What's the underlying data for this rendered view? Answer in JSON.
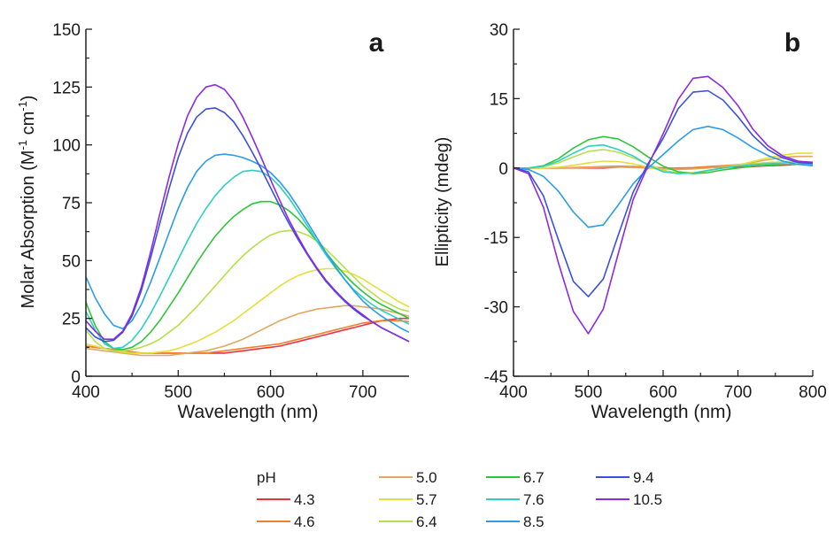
{
  "panels": [
    {
      "panel_label": "a",
      "xlabel": "Wavelength (nm)",
      "ylabel_parts": [
        "Molar Absorption (M",
        "-1",
        " cm",
        "-1",
        ")"
      ],
      "xlim": [
        400,
        750
      ],
      "ylim": [
        0,
        150
      ],
      "xticks": [
        400,
        500,
        600,
        700
      ],
      "yticks": [
        0,
        25,
        50,
        75,
        100,
        125,
        150
      ],
      "xtick_labels": [
        "400",
        "500",
        "600",
        "700"
      ],
      "ytick_labels": [
        "0",
        "25",
        "50",
        "75",
        "100",
        "125",
        "150"
      ]
    },
    {
      "panel_label": "b",
      "xlabel": "Wavelength (nm)",
      "ylabel": "Ellipticity (mdeg)",
      "xlim": [
        400,
        800
      ],
      "ylim": [
        -45,
        30
      ],
      "xticks": [
        400,
        500,
        600,
        700,
        800
      ],
      "yticks": [
        -45,
        -30,
        -15,
        0,
        15,
        30
      ],
      "xtick_labels": [
        "400",
        "500",
        "600",
        "700",
        "800"
      ],
      "ytick_labels": [
        "-45",
        "-30",
        "-15",
        "0",
        "15",
        "30"
      ]
    }
  ],
  "legend": {
    "title": "pH",
    "entries": [
      "4.3",
      "4.6",
      "5.0",
      "5.7",
      "6.4",
      "6.7",
      "7.6",
      "8.5",
      "9.4",
      "10.5"
    ]
  },
  "colors": [
    "#e8343a",
    "#f07f2f",
    "#e0a862",
    "#e6de3c",
    "#b5e04a",
    "#2fc53a",
    "#2ecfc2",
    "#2a9cea",
    "#3a4fe0",
    "#8a2be2"
  ],
  "chart_data": [
    {
      "type": "line",
      "title": "a",
      "xlabel": "Wavelength (nm)",
      "ylabel": "Molar Absorption (M-1 cm-1)",
      "xlim": [
        400,
        750
      ],
      "ylim": [
        0,
        150
      ],
      "x": [
        400,
        410,
        420,
        430,
        440,
        450,
        460,
        470,
        480,
        490,
        500,
        510,
        520,
        530,
        540,
        550,
        560,
        570,
        580,
        590,
        600,
        610,
        620,
        630,
        640,
        650,
        660,
        670,
        680,
        690,
        700,
        710,
        720,
        730,
        740,
        750
      ],
      "series": [
        {
          "name": "4.3",
          "values": [
            13,
            12.5,
            12,
            11.5,
            11,
            10.5,
            10,
            10,
            10,
            10,
            10,
            10,
            10,
            10,
            10,
            10,
            10.5,
            11,
            11.5,
            12,
            12.5,
            13,
            14,
            15,
            16,
            17,
            18,
            19,
            20,
            21,
            22,
            23,
            24,
            24.5,
            25,
            25
          ]
        },
        {
          "name": "4.6",
          "values": [
            13,
            12.5,
            12,
            11.5,
            11,
            10.5,
            10,
            10,
            10,
            10,
            10,
            10,
            10,
            10,
            10.5,
            11,
            11.5,
            12,
            12.5,
            13,
            13.5,
            14,
            15,
            16,
            17,
            18,
            19,
            20,
            21,
            22,
            23,
            23.5,
            24,
            24,
            24,
            23.5
          ]
        },
        {
          "name": "5.0",
          "values": [
            12,
            11.5,
            11,
            10.5,
            10,
            9.5,
            9,
            9,
            9,
            9,
            9.5,
            10,
            10.5,
            11,
            12,
            13,
            14.5,
            16,
            18,
            20,
            22,
            24,
            25.5,
            27,
            28,
            29,
            29.5,
            30,
            30.5,
            30.5,
            30,
            29.5,
            29,
            28,
            27,
            26
          ]
        },
        {
          "name": "5.7",
          "values": [
            14,
            13,
            12,
            11,
            10.5,
            10,
            10,
            10,
            10.5,
            11,
            12,
            13.5,
            15,
            17,
            19,
            21.5,
            24,
            27,
            30,
            33,
            36,
            39,
            41.5,
            43.5,
            45,
            46,
            46.5,
            46.5,
            45.5,
            44,
            42,
            39.5,
            37,
            34.5,
            32,
            30
          ]
        },
        {
          "name": "6.4",
          "values": [
            20,
            15,
            12,
            11,
            11,
            11.5,
            12.5,
            14,
            16,
            19,
            22,
            26,
            30,
            34.5,
            39,
            43.5,
            48,
            52,
            55.5,
            58.5,
            61,
            62.5,
            63,
            62.5,
            61,
            58.5,
            55,
            51,
            47,
            43,
            39,
            36,
            33,
            31,
            29,
            28
          ]
        },
        {
          "name": "6.7",
          "values": [
            32,
            22,
            15,
            12,
            11.5,
            12.5,
            15,
            19,
            24,
            30,
            36,
            42.5,
            49,
            55,
            60.5,
            65,
            69,
            72,
            74.5,
            75.5,
            75.5,
            74,
            71.5,
            68,
            63.5,
            58.5,
            53.5,
            48.5,
            44,
            40,
            36.5,
            33.5,
            31,
            29,
            27,
            25
          ]
        },
        {
          "name": "7.6",
          "values": [
            28,
            20,
            14,
            12,
            12.5,
            15.5,
            20.5,
            27,
            34.5,
            42.5,
            50.5,
            58.5,
            66,
            72.5,
            78,
            82.5,
            86,
            88.5,
            89,
            88.5,
            86,
            82,
            77,
            71,
            65,
            58.5,
            52.5,
            47,
            42,
            37.5,
            34,
            31,
            28.5,
            26.5,
            24.5,
            22.5
          ]
        },
        {
          "name": "8.5",
          "values": [
            43,
            34,
            27,
            22,
            20.5,
            24,
            31,
            40.5,
            51,
            62,
            72.5,
            81.5,
            88.5,
            93,
            95.5,
            96,
            95.5,
            94.5,
            93,
            91,
            88,
            84,
            79,
            73,
            66.5,
            60,
            53.5,
            47.5,
            42,
            37,
            32.5,
            29,
            26,
            23.5,
            21,
            19
          ]
        },
        {
          "name": "9.4",
          "values": [
            21,
            17,
            15,
            15.5,
            19,
            26,
            37,
            51,
            66,
            81,
            94.5,
            105,
            112,
            115.5,
            116,
            114,
            110,
            104,
            97,
            89.5,
            81.5,
            73.5,
            66,
            59,
            52.5,
            46.5,
            41,
            36.5,
            32.5,
            29,
            26,
            23.5,
            21,
            19,
            17,
            15
          ]
        },
        {
          "name": "10.5",
          "values": [
            24,
            19.5,
            16,
            16,
            19.5,
            27,
            38.5,
            53.5,
            70,
            86,
            100.5,
            112.5,
            120.5,
            125,
            126,
            124,
            119,
            112,
            103.5,
            94.5,
            85,
            76,
            67.5,
            60,
            53,
            47,
            41.5,
            37,
            33,
            29.5,
            26.5,
            23.5,
            21,
            19,
            17,
            15
          ]
        }
      ]
    },
    {
      "type": "line",
      "title": "b",
      "xlabel": "Wavelength (nm)",
      "ylabel": "Ellipticity (mdeg)",
      "xlim": [
        400,
        800
      ],
      "ylim": [
        -45,
        30
      ],
      "x": [
        400,
        420,
        440,
        460,
        480,
        500,
        520,
        540,
        560,
        580,
        600,
        620,
        640,
        660,
        680,
        700,
        720,
        740,
        760,
        780,
        800
      ],
      "series": [
        {
          "name": "4.3",
          "values": [
            0,
            0,
            0,
            0,
            0,
            0,
            0,
            0.2,
            0.3,
            0.2,
            0,
            -0.2,
            0,
            0.1,
            0.2,
            0.2,
            0.3,
            0.5,
            0.6,
            0.8,
            0.8
          ]
        },
        {
          "name": "4.6",
          "values": [
            0,
            0,
            0,
            0,
            0.1,
            0.2,
            0.3,
            0.4,
            0.3,
            0.2,
            0,
            0,
            0.1,
            0.3,
            0.5,
            0.7,
            0.9,
            1.1,
            1.2,
            1.3,
            1.3
          ]
        },
        {
          "name": "5.0",
          "values": [
            0,
            0,
            0,
            0,
            0,
            0.1,
            0.2,
            0.2,
            0.1,
            0,
            -0.2,
            -0.3,
            -0.2,
            0,
            0.3,
            0.7,
            1.2,
            1.8,
            2.3,
            2.5,
            2.5
          ]
        },
        {
          "name": "5.7",
          "values": [
            0,
            0,
            0,
            0.2,
            0.6,
            1.1,
            1.5,
            1.4,
            0.9,
            0.2,
            -0.6,
            -1,
            -1,
            -0.6,
            0,
            0.6,
            1.4,
            2.2,
            2.8,
            3.2,
            3.2
          ]
        },
        {
          "name": "6.4",
          "values": [
            0,
            0,
            0.3,
            1.1,
            2.4,
            3.6,
            4,
            3.4,
            2.2,
            0.8,
            -0.5,
            -1.1,
            -1.1,
            -0.6,
            0,
            0.5,
            0.9,
            1.2,
            1.3,
            1.3,
            1.2
          ]
        },
        {
          "name": "6.7",
          "values": [
            0,
            0,
            0.5,
            2,
            4.3,
            6.1,
            6.8,
            6.3,
            4.6,
            2.4,
            0.4,
            -0.8,
            -1.2,
            -1,
            -0.4,
            0,
            0.4,
            0.6,
            0.8,
            0.8,
            0.8
          ]
        },
        {
          "name": "7.6",
          "values": [
            0,
            0,
            0.4,
            1.5,
            3.2,
            4.7,
            5,
            4,
            2.6,
            0.6,
            -0.8,
            -1.2,
            -1.1,
            -0.5,
            0,
            0.4,
            0.7,
            0.9,
            0.9,
            0.8,
            0.8
          ]
        },
        {
          "name": "8.5",
          "values": [
            0,
            -0.3,
            -1.8,
            -5,
            -9.5,
            -12.8,
            -12.3,
            -8,
            -3.4,
            0,
            2.9,
            5.8,
            8.3,
            9,
            8.3,
            6.5,
            4.4,
            2.7,
            1.5,
            0.8,
            0.5
          ]
        },
        {
          "name": "9.4",
          "values": [
            0,
            -0.8,
            -6,
            -15.5,
            -24.5,
            -27.8,
            -24,
            -14.5,
            -5.2,
            1,
            6.4,
            12.8,
            16.4,
            16.7,
            14.7,
            11.1,
            7,
            4,
            2.2,
            1.2,
            1
          ]
        },
        {
          "name": "10.5",
          "values": [
            0,
            -1.2,
            -8.5,
            -20.5,
            -31,
            -35.8,
            -30.5,
            -18.5,
            -6.8,
            0.6,
            7.4,
            14.8,
            19.4,
            19.8,
            17.4,
            13.5,
            8.4,
            4.8,
            2.6,
            1.5,
            1.2
          ]
        }
      ]
    }
  ]
}
